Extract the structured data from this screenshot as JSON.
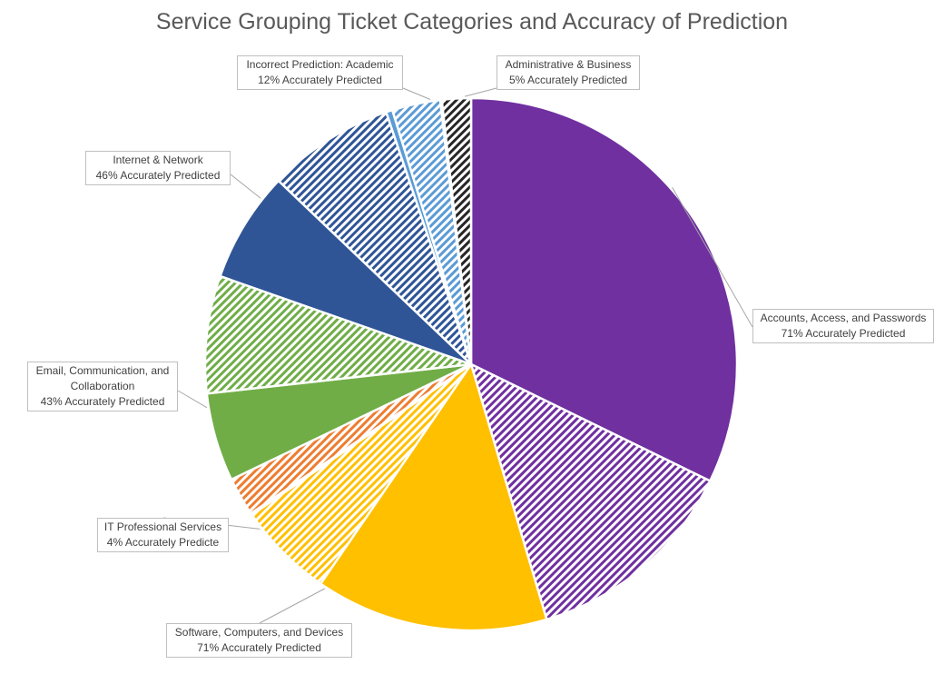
{
  "chart_data": {
    "type": "pie",
    "title": "Service Grouping Ticket Categories and Accuracy of Prediction",
    "colors": {
      "accounts": "#7030A0",
      "software": "#FFC000",
      "it_professional": "#ED7D31",
      "email": "#70AD47",
      "internet": "#2F5597",
      "academic": "#5B9BD5",
      "administrative": "#262626"
    },
    "legend": "none (data callouts)",
    "slices": [
      {
        "group": "accounts",
        "part": "correct",
        "value": 33.0,
        "pattern": "solid"
      },
      {
        "group": "accounts",
        "part": "incorrect",
        "value": 13.5,
        "pattern": "hatched"
      },
      {
        "group": "software",
        "part": "correct",
        "value": 14.5,
        "pattern": "solid"
      },
      {
        "group": "software",
        "part": "incorrect",
        "value": 6.0,
        "pattern": "hatched"
      },
      {
        "group": "it_professional",
        "part": "correct",
        "value": 0.1,
        "pattern": "solid"
      },
      {
        "group": "it_professional",
        "part": "incorrect",
        "value": 2.4,
        "pattern": "hatched"
      },
      {
        "group": "email",
        "part": "correct",
        "value": 5.5,
        "pattern": "solid"
      },
      {
        "group": "email",
        "part": "incorrect",
        "value": 7.3,
        "pattern": "hatched"
      },
      {
        "group": "internet",
        "part": "correct",
        "value": 6.9,
        "pattern": "solid"
      },
      {
        "group": "internet",
        "part": "incorrect",
        "value": 7.9,
        "pattern": "hatched"
      },
      {
        "group": "academic",
        "part": "correct",
        "value": 0.4,
        "pattern": "solid"
      },
      {
        "group": "academic",
        "part": "incorrect",
        "value": 3.0,
        "pattern": "hatched"
      },
      {
        "group": "administrative",
        "part": "correct",
        "value": 0.1,
        "pattern": "solid"
      },
      {
        "group": "administrative",
        "part": "incorrect",
        "value": 1.8,
        "pattern": "hatched"
      }
    ],
    "callouts": [
      {
        "id": "accounts",
        "lines": [
          "Accounts, Access, and Passwords",
          "71% Accurately Predicted"
        ]
      },
      {
        "id": "software",
        "lines": [
          "Software, Computers, and Devices",
          "71% Accurately Predicted"
        ]
      },
      {
        "id": "it_professional",
        "lines": [
          "IT Professional Services",
          "4% Accurately Predicte"
        ]
      },
      {
        "id": "email",
        "lines": [
          "Email, Communication, and",
          "Collaboration",
          "43% Accurately Predicted"
        ]
      },
      {
        "id": "internet",
        "lines": [
          "Internet & Network",
          "46%  Accurately Predicted"
        ]
      },
      {
        "id": "academic",
        "lines": [
          "Incorrect Prediction: Academic",
          "12% Accurately Predicted"
        ]
      },
      {
        "id": "administrative",
        "lines": [
          "Administrative & Business",
          "5% Accurately Predicted"
        ]
      }
    ]
  }
}
